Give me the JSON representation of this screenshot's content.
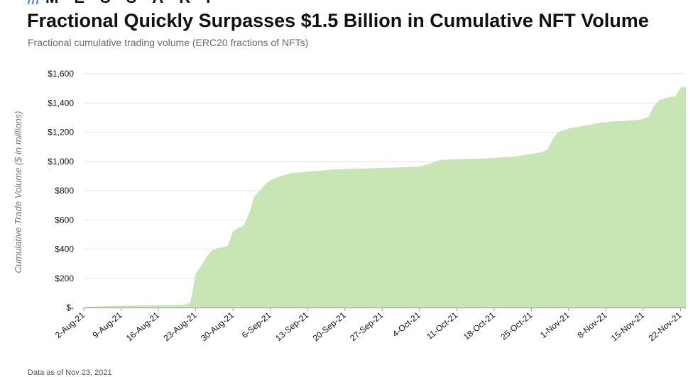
{
  "brand": {
    "name": "MESSARI",
    "icon": "messari-logo-icon",
    "icon_color": "#3b7dd8"
  },
  "footnote": "Data as of Nov 23, 2021",
  "colors": {
    "area_fill": "#c8e6b4",
    "grid": "#e6e6e6",
    "text": "#111111",
    "muted": "#6b6b6b"
  },
  "chart_data": {
    "type": "area",
    "title": "Fractional Quickly Surpasses $1.5 Billion in Cumulative NFT Volume",
    "subtitle": "Fractional cumulative trading volume (ERC20 fractions of NFTs)",
    "xlabel": "",
    "ylabel": "Cumulative Trade Volume ($ in millions)",
    "ylim": [
      0,
      1600
    ],
    "grid": true,
    "y_ticks": [
      0,
      200,
      400,
      600,
      800,
      1000,
      1200,
      1400,
      1600
    ],
    "y_tick_labels": [
      "$-",
      "$200",
      "$400",
      "$600",
      "$800",
      "$1,000",
      "$1,200",
      "$1,400",
      "$1,600"
    ],
    "x_ticks": [
      "2-Aug-21",
      "9-Aug-21",
      "16-Aug-21",
      "23-Aug-21",
      "30-Aug-21",
      "6-Sep-21",
      "13-Sep-21",
      "20-Sep-21",
      "27-Sep-21",
      "4-Oct-21",
      "11-Oct-21",
      "18-Oct-21",
      "25-Oct-21",
      "1-Nov-21",
      "8-Nov-21",
      "15-Nov-21",
      "22-Nov-21"
    ],
    "x_start": "2021-08-02",
    "x_end": "2021-11-23",
    "series": [
      {
        "x": [
          "2021-08-02",
          "2021-08-05",
          "2021-08-09",
          "2021-08-12",
          "2021-08-16",
          "2021-08-19",
          "2021-08-21",
          "2021-08-22",
          "2021-08-23",
          "2021-08-24",
          "2021-08-25",
          "2021-08-26",
          "2021-08-27",
          "2021-08-29",
          "2021-08-30",
          "2021-08-31",
          "2021-09-01",
          "2021-09-02",
          "2021-09-03",
          "2021-09-04",
          "2021-09-05",
          "2021-09-06",
          "2021-09-08",
          "2021-09-10",
          "2021-09-13",
          "2021-09-18",
          "2021-09-22",
          "2021-09-27",
          "2021-10-01",
          "2021-10-04",
          "2021-10-06",
          "2021-10-08",
          "2021-10-11",
          "2021-10-16",
          "2021-10-21",
          "2021-10-23",
          "2021-10-25",
          "2021-10-27",
          "2021-10-28",
          "2021-10-29",
          "2021-10-30",
          "2021-11-01",
          "2021-11-04",
          "2021-11-07",
          "2021-11-10",
          "2021-11-13",
          "2021-11-15",
          "2021-11-16",
          "2021-11-17",
          "2021-11-18",
          "2021-11-20",
          "2021-11-21",
          "2021-11-22",
          "2021-11-23"
        ],
        "y": [
          5,
          8,
          12,
          14,
          16,
          17,
          20,
          35,
          230,
          285,
          345,
          390,
          405,
          420,
          520,
          545,
          560,
          640,
          760,
          800,
          840,
          870,
          900,
          920,
          930,
          945,
          950,
          955,
          960,
          965,
          985,
          1010,
          1015,
          1020,
          1030,
          1040,
          1050,
          1065,
          1080,
          1150,
          1200,
          1225,
          1245,
          1265,
          1275,
          1280,
          1290,
          1305,
          1380,
          1420,
          1440,
          1445,
          1505,
          1510
        ]
      }
    ]
  }
}
